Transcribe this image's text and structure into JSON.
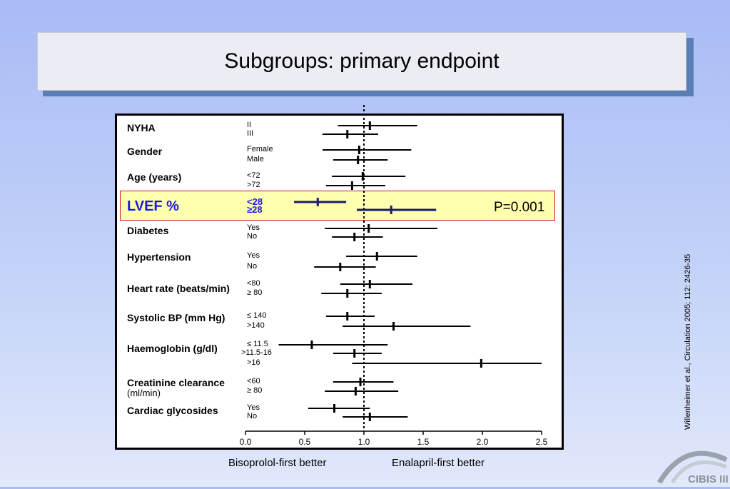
{
  "title": "Subgroups: primary endpoint",
  "chart_data": {
    "type": "forest",
    "xlim": [
      0.0,
      2.5
    ],
    "xticks": [
      "0.0",
      "0.5",
      "1.0",
      "1.5",
      "2.0",
      "2.5"
    ],
    "xtick_values": [
      0.0,
      0.5,
      1.0,
      1.5,
      2.0,
      2.5
    ],
    "reference_line": 1.0,
    "xlabel_left": "Bisoprolol-first better",
    "xlabel_right": "Enalapril-first better",
    "groups": [
      {
        "label": "NYHA",
        "rows": [
          {
            "label": "II",
            "point": 1.05,
            "ci": [
              0.78,
              1.45
            ]
          },
          {
            "label": "III",
            "point": 0.86,
            "ci": [
              0.65,
              1.12
            ]
          }
        ]
      },
      {
        "label": "Gender",
        "rows": [
          {
            "label": "Female",
            "point": 0.96,
            "ci": [
              0.65,
              1.4
            ]
          },
          {
            "label": "Male",
            "point": 0.95,
            "ci": [
              0.74,
              1.2
            ]
          }
        ]
      },
      {
        "label": "Age (years)",
        "rows": [
          {
            "label": "<72",
            "display_prefix": "",
            "point": 0.99,
            "ci": [
              0.73,
              1.35
            ]
          },
          {
            "label": ">72",
            "point": 0.9,
            "ci": [
              0.68,
              1.18
            ]
          }
        ]
      },
      {
        "label": "LVEF %",
        "highlight": true,
        "rows": [
          {
            "label": "<28",
            "point": 0.61,
            "ci": [
              0.41,
              0.85
            ]
          },
          {
            "label": "≥28",
            "point": 1.23,
            "ci": [
              0.94,
              1.61
            ]
          }
        ]
      },
      {
        "label": "Diabetes",
        "rows": [
          {
            "label": "Yes",
            "point": 1.04,
            "ci": [
              0.67,
              1.62
            ]
          },
          {
            "label": "No",
            "point": 0.92,
            "ci": [
              0.73,
              1.16
            ]
          }
        ]
      },
      {
        "label": "Hypertension",
        "rows": [
          {
            "label": "Yes",
            "point": 1.11,
            "ci": [
              0.85,
              1.45
            ]
          },
          {
            "label": "No",
            "point": 0.8,
            "ci": [
              0.58,
              1.1
            ]
          }
        ]
      },
      {
        "label": "Heart rate (beats/min)",
        "rows": [
          {
            "label": "<80",
            "point": 1.05,
            "ci": [
              0.8,
              1.41
            ]
          },
          {
            "label": "≥ 80",
            "point": 0.86,
            "ci": [
              0.64,
              1.15
            ]
          }
        ]
      },
      {
        "label": "Systolic BP (mm Hg)",
        "rows": [
          {
            "label": "≤ 140",
            "point": 0.86,
            "ci": [
              0.68,
              1.09
            ]
          },
          {
            "label": ">140",
            "point": 1.25,
            "ci": [
              0.82,
              1.9
            ]
          }
        ]
      },
      {
        "label": "Haemoglobin (g/dl)",
        "rows": [
          {
            "label": "≤ 11.5",
            "point": 0.56,
            "ci": [
              0.28,
              1.2
            ]
          },
          {
            "label": ">11.5-16",
            "point": 0.92,
            "ci": [
              0.74,
              1.15
            ]
          },
          {
            "label": ">16",
            "point": 1.99,
            "ci": [
              0.9,
              2.5
            ]
          }
        ]
      },
      {
        "label": "Creatinine clearance",
        "sublabel": "(ml/min)",
        "rows": [
          {
            "label": "<60",
            "point": 0.97,
            "ci": [
              0.74,
              1.25
            ]
          },
          {
            "label": "≥ 80",
            "point": 0.93,
            "ci": [
              0.67,
              1.29
            ]
          }
        ]
      },
      {
        "label": "Cardiac glycosides",
        "rows": [
          {
            "label": "Yes",
            "point": 0.75,
            "ci": [
              0.53,
              1.05
            ]
          },
          {
            "label": "No",
            "point": 1.05,
            "ci": [
              0.82,
              1.37
            ]
          }
        ]
      }
    ],
    "annotation": "P=0.001"
  },
  "citation": "Willenheimer et al., Circulation 2005; 112: 2426-35",
  "logo_text": "CIBIS III",
  "colors": {
    "highlight_fill": "#ffffb0",
    "highlight_border": "#d8123a",
    "highlight_text": "#1a1ad8",
    "highlight_lines": "#1a1a6e"
  }
}
